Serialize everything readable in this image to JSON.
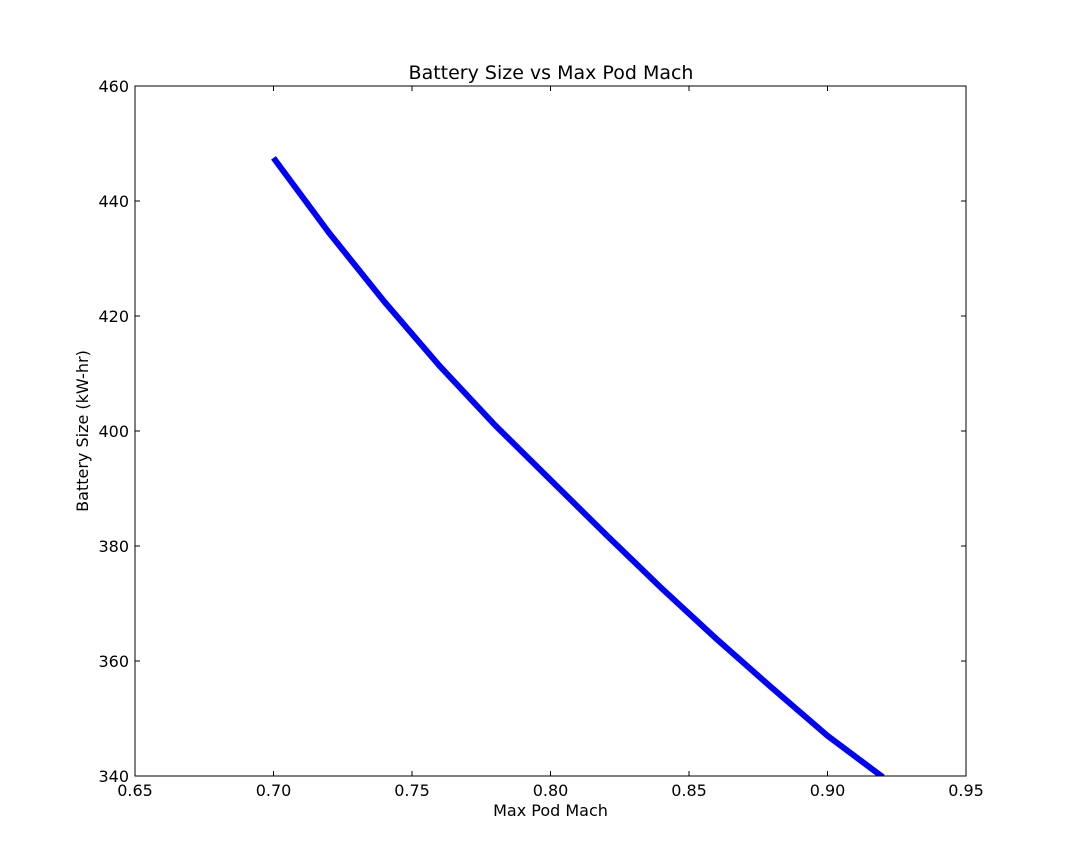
{
  "chart_data": {
    "type": "line",
    "title": "Battery Size vs Max Pod Mach",
    "xlabel": "Max Pod Mach",
    "ylabel": "Battery Size (kW-hr)",
    "xlim": [
      0.65,
      0.95
    ],
    "ylim": [
      340,
      460
    ],
    "xticks": [
      "0.65",
      "0.70",
      "0.75",
      "0.80",
      "0.85",
      "0.90",
      "0.95"
    ],
    "yticks": [
      "340",
      "360",
      "380",
      "400",
      "420",
      "440",
      "460"
    ],
    "grid": false,
    "series": [
      {
        "color": "#0000ff",
        "x": [
          0.7,
          0.72,
          0.74,
          0.76,
          0.78,
          0.8,
          0.82,
          0.84,
          0.86,
          0.88,
          0.9,
          0.92
        ],
        "y": [
          447.5,
          434.5,
          422.5,
          411.3,
          401.0,
          391.5,
          382.0,
          372.7,
          363.8,
          355.3,
          347.0,
          339.8
        ]
      }
    ]
  }
}
